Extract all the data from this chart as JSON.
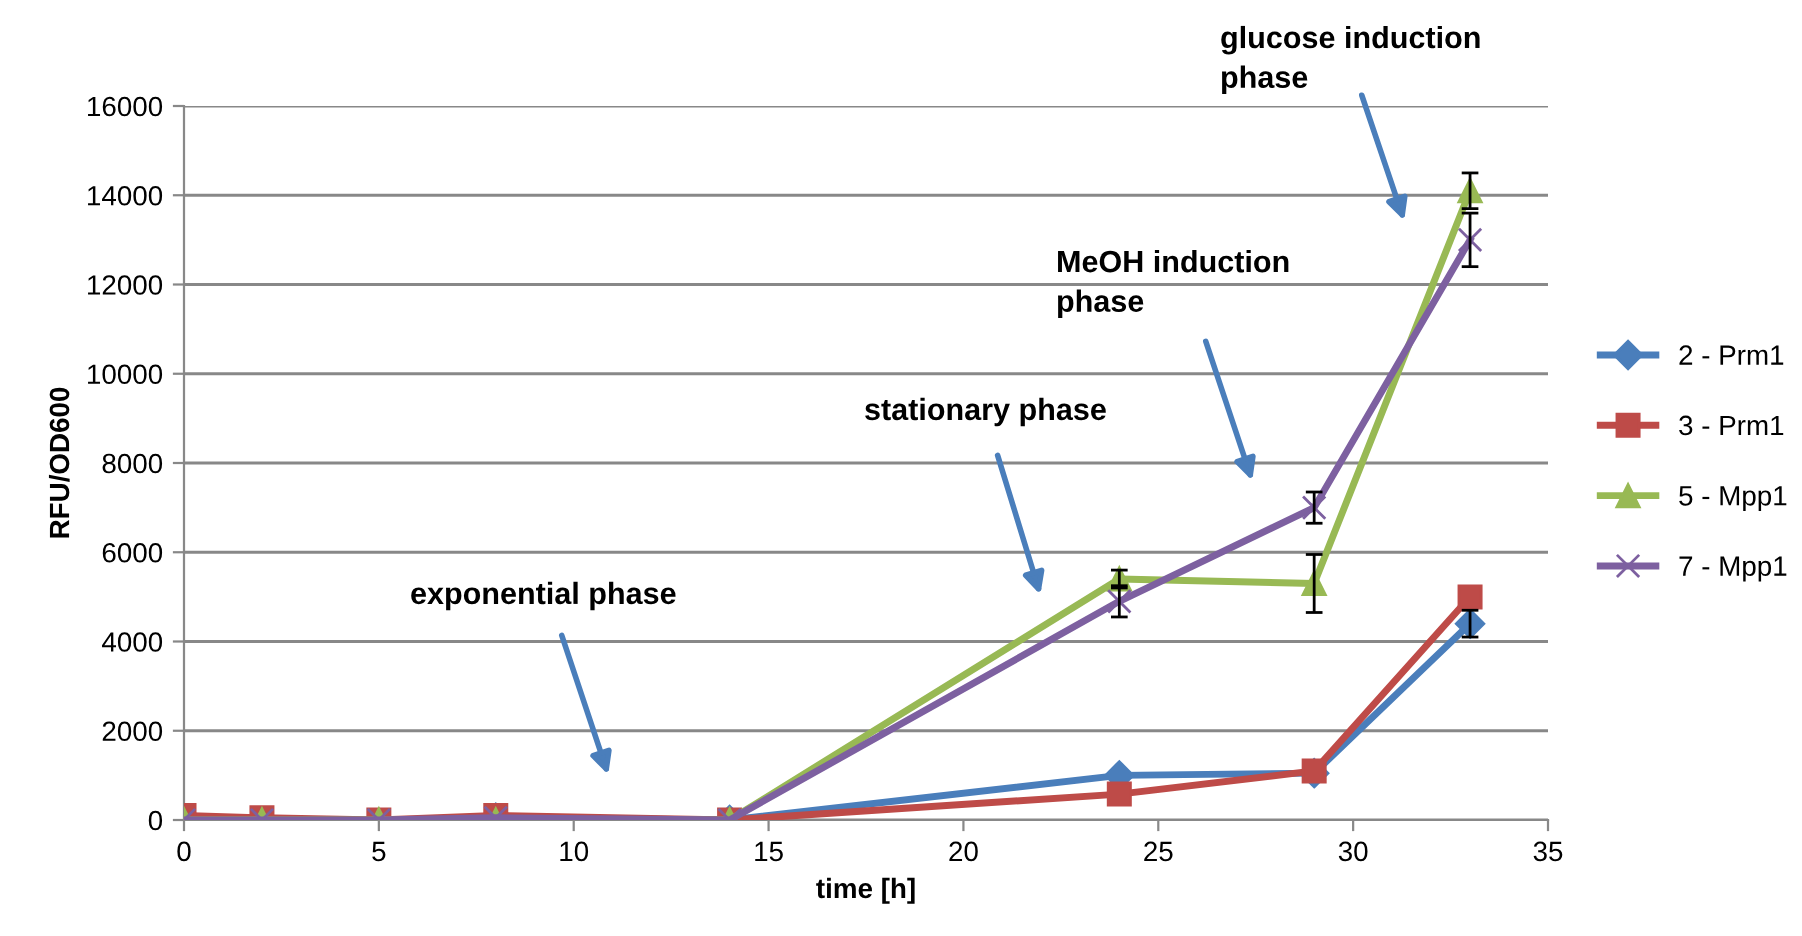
{
  "chart_data": {
    "type": "line",
    "xlabel": "time [h]",
    "ylabel": "RFU/OD600",
    "x": [
      0,
      2,
      5,
      8,
      14,
      24,
      29,
      33
    ],
    "series": [
      {
        "name": "2 - Prm1",
        "color": "#4a7ebb",
        "marker": "diamond",
        "values": [
          null,
          null,
          null,
          50,
          0,
          1000,
          1050,
          4400
        ],
        "errors": [
          null,
          null,
          null,
          null,
          null,
          null,
          null,
          300
        ]
      },
      {
        "name": "3 - Prm1",
        "color": "#be4b48",
        "marker": "square",
        "values": [
          100,
          50,
          0,
          100,
          0,
          580,
          1100,
          5000
        ]
      },
      {
        "name": "5 - Mpp1",
        "color": "#98b954",
        "marker": "triangle",
        "values": [
          0,
          0,
          0,
          0,
          0,
          5400,
          5300,
          14100
        ],
        "errors": [
          null,
          null,
          null,
          null,
          null,
          200,
          650,
          400
        ]
      },
      {
        "name": "7 - Mpp1",
        "color": "#7d60a0",
        "marker": "cross",
        "values": [
          0,
          0,
          0,
          50,
          0,
          4900,
          7000,
          13000
        ],
        "errors": [
          null,
          null,
          null,
          null,
          null,
          350,
          350,
          600
        ]
      }
    ],
    "annotations": [
      "exponential phase",
      "stationary phase",
      "MeOH induction\nphase",
      "glucose induction\nphase"
    ],
    "xlim": [
      0,
      35
    ],
    "xticks": [
      0,
      5,
      10,
      15,
      20,
      25,
      30,
      35
    ],
    "ylim": [
      0,
      16000
    ],
    "yticks": [
      0,
      2000,
      4000,
      6000,
      8000,
      10000,
      12000,
      14000,
      16000
    ],
    "grid": "y",
    "legend": "right",
    "line_style": "solid"
  }
}
